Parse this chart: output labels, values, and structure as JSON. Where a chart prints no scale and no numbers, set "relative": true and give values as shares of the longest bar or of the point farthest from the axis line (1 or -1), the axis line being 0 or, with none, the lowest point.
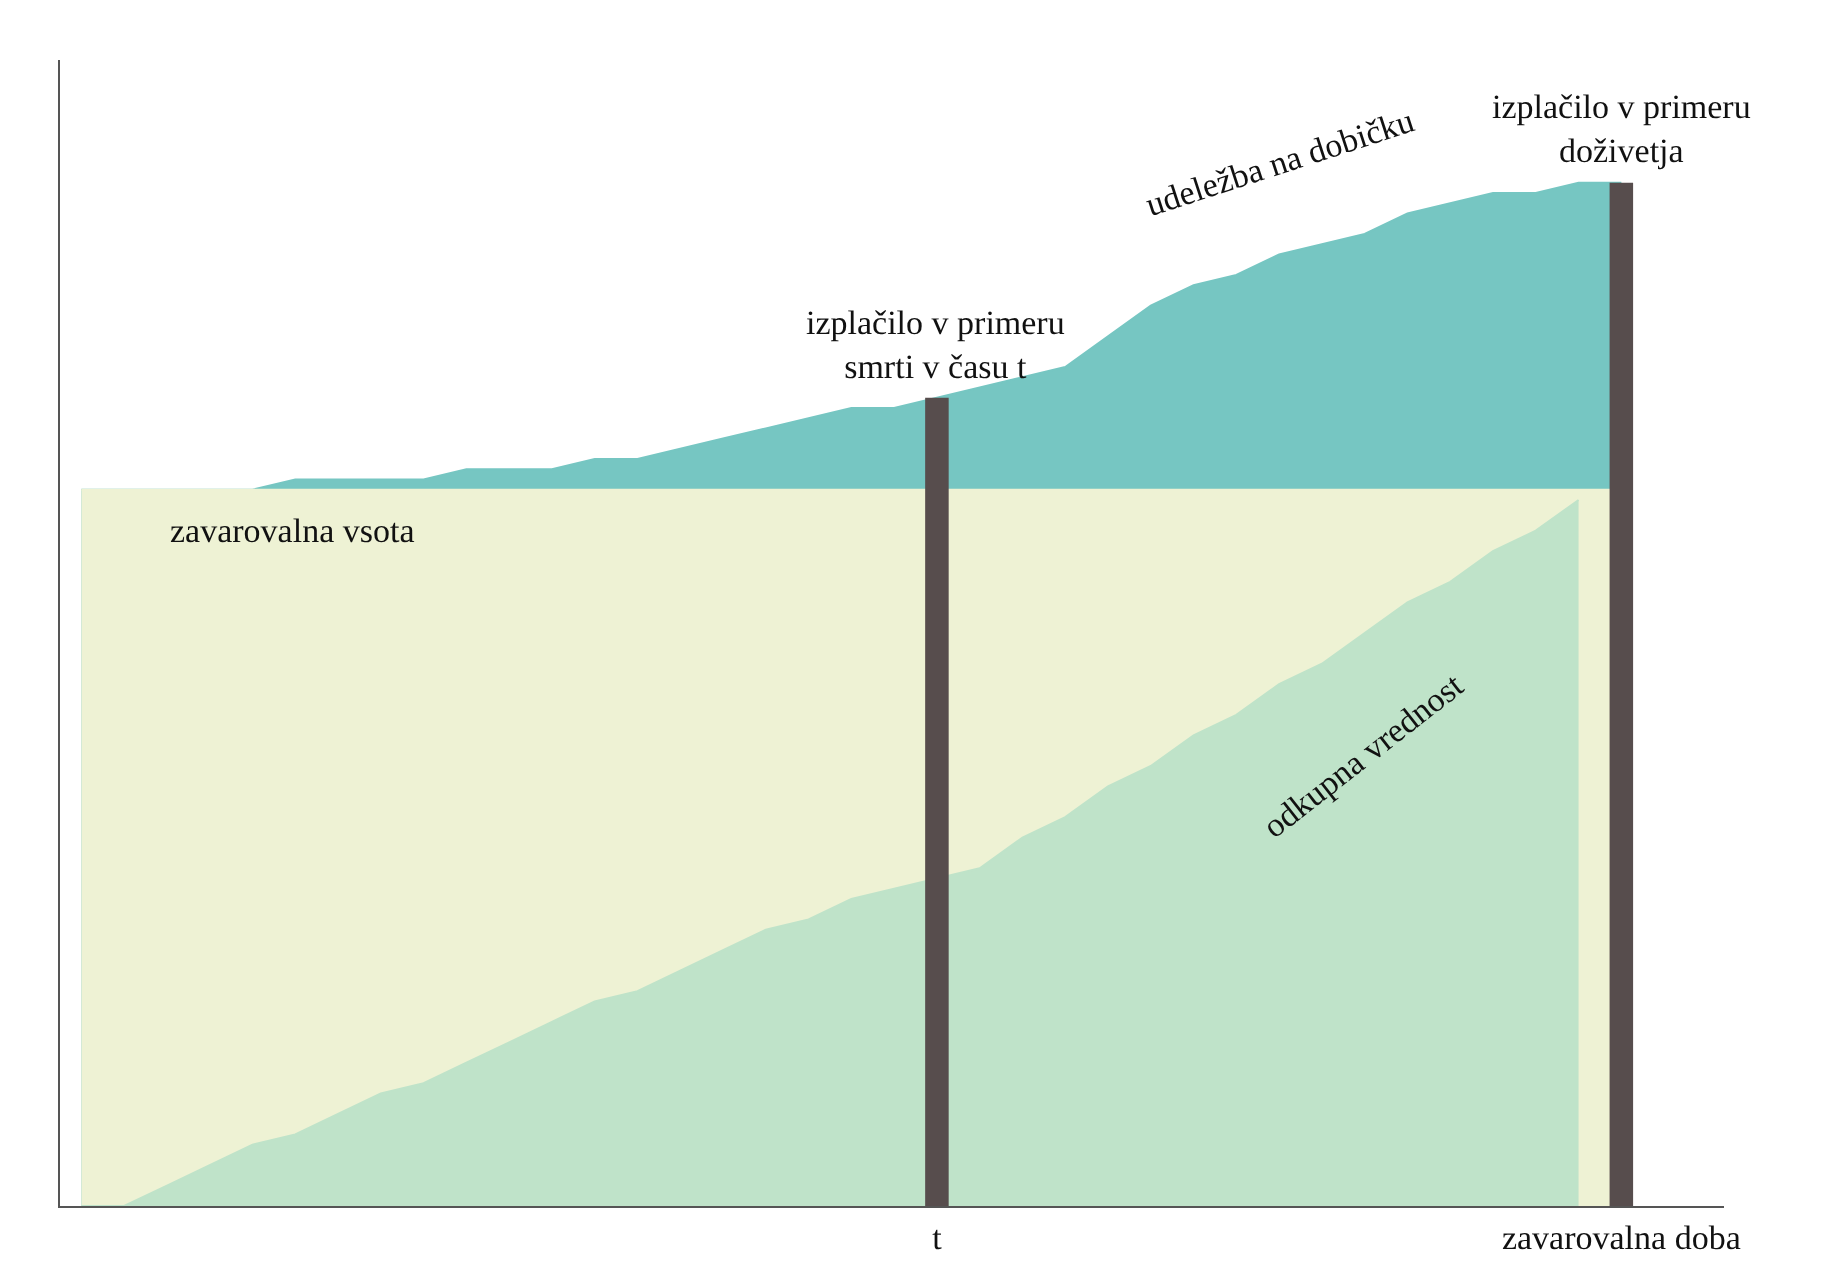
{
  "chart_data": {
    "type": "area",
    "relative": true,
    "categories": [
      null,
      null,
      null,
      null,
      null,
      null,
      null,
      null,
      null,
      null,
      null,
      null,
      null,
      null,
      null,
      null,
      null,
      null,
      null,
      null,
      "t",
      null,
      null,
      null,
      null,
      null,
      null,
      null,
      null,
      null,
      null,
      null,
      null,
      null,
      null,
      null,
      "zavarovalna doba"
    ],
    "series": [
      {
        "name": "udeležba na dobičku",
        "color": "#76c6c2",
        "values": [
          0.7,
          0.7,
          0.7,
          0.7,
          0.7,
          0.71,
          0.71,
          0.71,
          0.71,
          0.72,
          0.72,
          0.72,
          0.73,
          0.73,
          0.74,
          0.75,
          0.76,
          0.77,
          0.78,
          0.78,
          0.79,
          0.8,
          0.81,
          0.82,
          0.85,
          0.88,
          0.9,
          0.91,
          0.93,
          0.94,
          0.95,
          0.97,
          0.98,
          0.99,
          0.99,
          1,
          1
        ]
      },
      {
        "name": "zavarovalna vsota",
        "color": "#eef2d4",
        "values": [
          0.7,
          0.7,
          0.7,
          0.7,
          0.7,
          0.7,
          0.7,
          0.7,
          0.7,
          0.7,
          0.7,
          0.7,
          0.7,
          0.7,
          0.7,
          0.7,
          0.7,
          0.7,
          0.7,
          0.7,
          null,
          0.7,
          0.7,
          0.7,
          0.7,
          0.7,
          0.7,
          0.7,
          0.7,
          0.7,
          0.7,
          0.7,
          0.7,
          0.7,
          0.7,
          0.7,
          0.7
        ]
      },
      {
        "name": "odkupna vrednost",
        "color": "#bfe3c9",
        "values": [
          0,
          0,
          0.02,
          0.04,
          0.06,
          0.07,
          0.09,
          0.11,
          0.12,
          0.14,
          0.16,
          0.18,
          0.2,
          0.21,
          0.23,
          0.25,
          0.27,
          0.28,
          0.3,
          0.31,
          null,
          0.33,
          0.36,
          0.38,
          0.41,
          0.43,
          0.46,
          0.48,
          0.51,
          0.53,
          0.56,
          0.59,
          0.61,
          0.64,
          0.66,
          0.69,
          null
        ]
      },
      {
        "type": "bar",
        "name": "izplačilo v primeru\nsmrti v času t",
        "color": "#574d4d",
        "values": [
          null,
          null,
          null,
          null,
          null,
          null,
          null,
          null,
          null,
          null,
          null,
          null,
          null,
          null,
          null,
          null,
          null,
          null,
          null,
          null,
          0.79,
          null,
          null,
          null,
          null,
          null,
          null,
          null,
          null,
          null,
          null,
          null,
          null,
          null,
          null,
          null,
          null
        ]
      },
      {
        "type": "bar",
        "name": "izplačilo v primeru\ndoživetja",
        "color": "#574d4d",
        "values": [
          null,
          null,
          null,
          null,
          null,
          null,
          null,
          null,
          null,
          null,
          null,
          null,
          null,
          null,
          null,
          null,
          null,
          null,
          null,
          null,
          null,
          null,
          null,
          null,
          null,
          null,
          null,
          null,
          null,
          null,
          null,
          null,
          null,
          null,
          null,
          null,
          1
        ]
      }
    ]
  }
}
